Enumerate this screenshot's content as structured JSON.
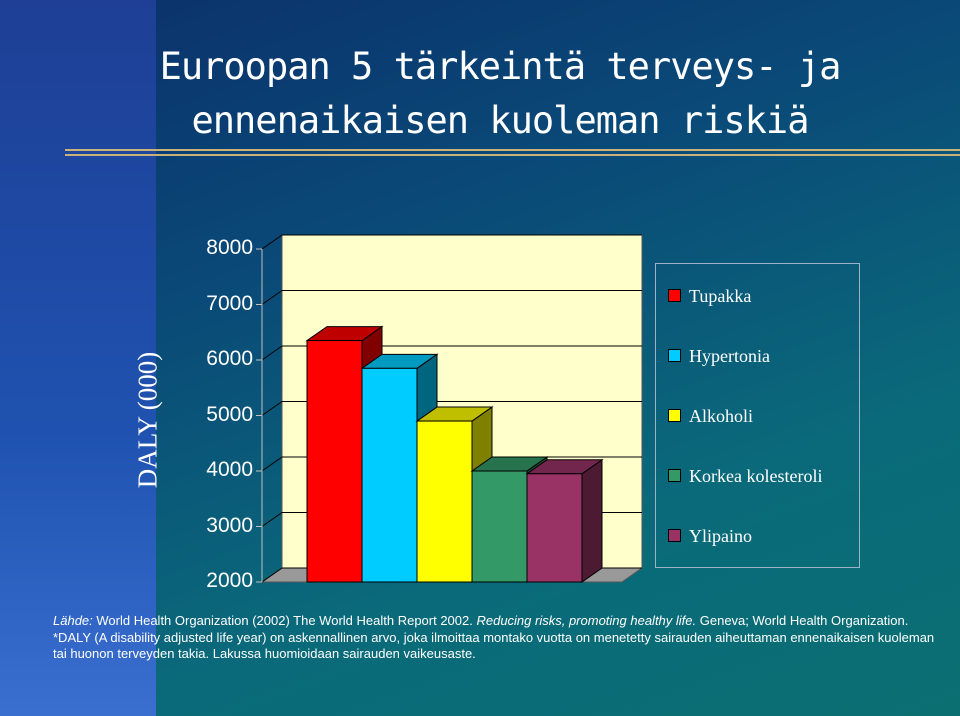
{
  "slide": {
    "title_line1": "Euroopan 5 tärkeintä terveys- ja",
    "title_line2": "ennenaikaisen kuoleman riskiä"
  },
  "chart_data": {
    "type": "bar",
    "title": "",
    "xlabel": "",
    "ylabel": "DALY (000)",
    "ylim": [
      2000,
      8000
    ],
    "yticks": [
      2000,
      3000,
      4000,
      5000,
      6000,
      7000,
      8000
    ],
    "yticks_labels": [
      "2000",
      "3000",
      "4000",
      "5000",
      "6000",
      "7000",
      "8000"
    ],
    "categories": [
      "Tupakka",
      "Hypertonia",
      "Alkoholi",
      "Korkea kolesteroli",
      "Ylipaino"
    ],
    "values": [
      6350,
      5850,
      4900,
      4000,
      3950
    ],
    "colors": [
      "#ff0000",
      "#00ccff",
      "#ffff00",
      "#339966",
      "#993366"
    ],
    "legend_position": "right",
    "grid": true,
    "three_d": true
  },
  "source": {
    "line1_prefix": "Lähde:",
    "line1_main": " World Health Organization (2002) The World Health Report 2002. ",
    "line1_italic": "Reducing risks, promoting healthy life.",
    "line1_end": " Geneva; World Health Organization.",
    "line2": "*DALY (A disability adjusted life year) on askennallinen arvo, joka ilmoittaa montako vuotta on menetetty sairauden aiheuttaman ennenaikaisen kuoleman",
    "line3": "tai huonon terveyden takia. Lakussa huomioidaan sairauden vaikeusaste."
  }
}
